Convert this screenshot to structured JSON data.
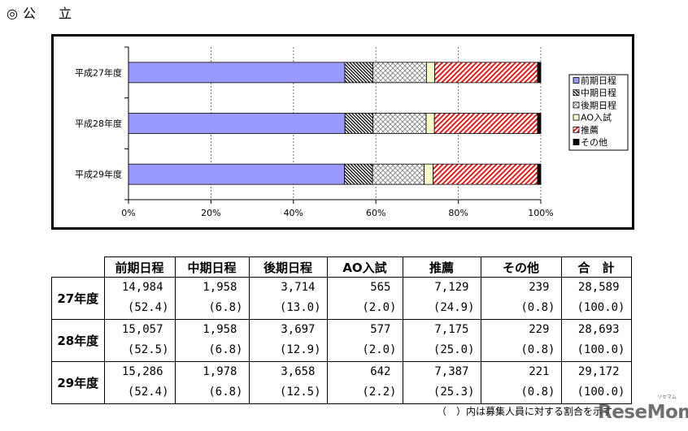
{
  "title": "◎公　立",
  "chart_data": {
    "type": "bar",
    "horizontal": true,
    "stacked": true,
    "categories": [
      "平成27年度",
      "平成28年度",
      "平成29年度"
    ],
    "series": [
      {
        "name": "前期日程",
        "values": [
          52.4,
          52.5,
          52.4
        ],
        "color": "#9999ff"
      },
      {
        "name": "中期日程",
        "values": [
          6.8,
          6.8,
          6.8
        ],
        "color": "#000000"
      },
      {
        "name": "後期日程",
        "values": [
          13.0,
          12.9,
          12.5
        ],
        "color": "#808080"
      },
      {
        "name": "AO入試",
        "values": [
          2.0,
          2.0,
          2.2
        ],
        "color": "#ffffcc"
      },
      {
        "name": "推薦",
        "values": [
          24.9,
          25.0,
          25.3
        ],
        "color": "#ff0000"
      },
      {
        "name": "その他",
        "values": [
          0.8,
          0.8,
          0.8
        ],
        "color": "#000000"
      }
    ],
    "xlim": [
      0,
      100
    ],
    "xticks": [
      0,
      20,
      40,
      60,
      80,
      100
    ],
    "xtick_labels": [
      "0%",
      "20%",
      "40%",
      "60%",
      "80%",
      "100%"
    ],
    "grid": true,
    "legend": "right"
  },
  "table": {
    "headers": [
      "前期日程",
      "中期日程",
      "後期日程",
      "AO入試",
      "推薦",
      "その他",
      "合　計"
    ],
    "rows": [
      {
        "label": "27年度",
        "counts": [
          "14,984",
          "1,958",
          "3,714",
          "565",
          "7,129",
          "239",
          "28,589"
        ],
        "ratios": [
          "(52.4)",
          "(6.8)",
          "(13.0)",
          "(2.0)",
          "(24.9)",
          "(0.8)",
          "(100.0)"
        ]
      },
      {
        "label": "28年度",
        "counts": [
          "15,057",
          "1,958",
          "3,697",
          "577",
          "7,175",
          "229",
          "28,693"
        ],
        "ratios": [
          "(52.5)",
          "(6.8)",
          "(12.9)",
          "(2.0)",
          "(25.0)",
          "(0.8)",
          "(100.0)"
        ]
      },
      {
        "label": "29年度",
        "counts": [
          "15,286",
          "1,978",
          "3,658",
          "642",
          "7,387",
          "221",
          "29,172"
        ],
        "ratios": [
          "(52.4)",
          "(6.8)",
          "(12.5)",
          "(2.2)",
          "(25.3)",
          "(0.8)",
          "(100.0)"
        ]
      }
    ]
  },
  "footnote": "（　）内は募集人員に対する割合を示す",
  "logo": {
    "text": "ReseMom",
    "kana": "リセマム"
  }
}
